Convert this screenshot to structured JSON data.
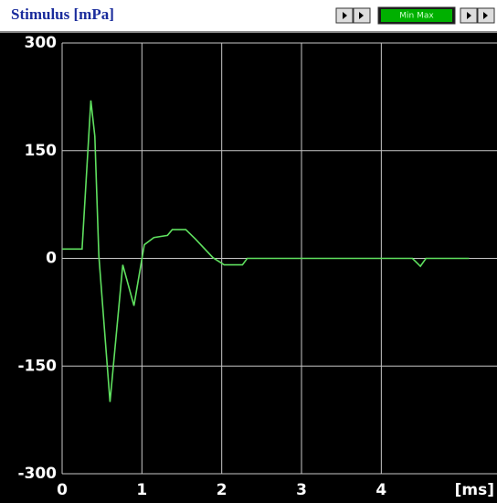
{
  "chart_data": {
    "type": "line",
    "title": "Stimulus [mPa]",
    "x_label": "[ms]",
    "toolbar_button": "Min Max",
    "x": [
      0,
      0.25,
      0.36,
      0.41,
      0.46,
      0.6,
      0.76,
      0.9,
      1.03,
      1.15,
      1.32,
      1.38,
      1.55,
      1.67,
      1.89,
      2.03,
      2.26,
      2.32,
      4.39,
      4.49,
      4.56,
      5.1
    ],
    "series": [
      {
        "name": "Stimulus",
        "color": "#5fe05f",
        "values": [
          13,
          13,
          220,
          170,
          4,
          -200,
          -9,
          -66,
          19,
          29,
          32,
          40,
          40,
          27,
          1,
          -9,
          -9,
          0,
          0,
          -11,
          0,
          0
        ]
      }
    ],
    "xlim": [
      0,
      5.45
    ],
    "xticks": [
      0,
      1,
      2,
      3,
      4
    ],
    "ylim": [
      -300,
      300
    ],
    "yticks": [
      -300,
      -150,
      0,
      150,
      300
    ],
    "grid": true
  }
}
